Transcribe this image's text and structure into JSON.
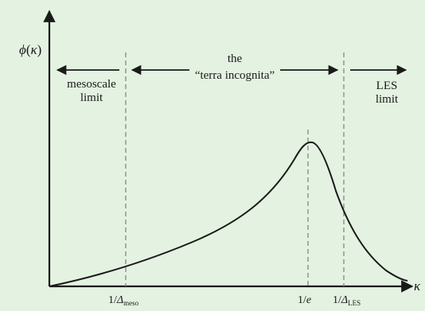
{
  "y_axis": {
    "label_func": "ϕ",
    "label_open": "(",
    "label_var": "κ",
    "label_close": ")"
  },
  "x_axis": {
    "label": "κ"
  },
  "regions": {
    "mesoscale": {
      "line1": "mesoscale",
      "line2": "limit"
    },
    "terra": {
      "line1": "the",
      "line2": "“terra incognita”"
    },
    "les": {
      "line1": "LES",
      "line2": "limit"
    }
  },
  "ticks": {
    "meso": {
      "prefix": "1/",
      "symbol": "Δ",
      "sub": "meso"
    },
    "e": {
      "prefix": "1/",
      "symbol": "e"
    },
    "les": {
      "prefix": "1/",
      "symbol": "Δ",
      "sub": "LES"
    }
  },
  "colors": {
    "background": "#e4f2e1",
    "ink": "#1a1a1a",
    "dashed": "#7f8a7f"
  }
}
